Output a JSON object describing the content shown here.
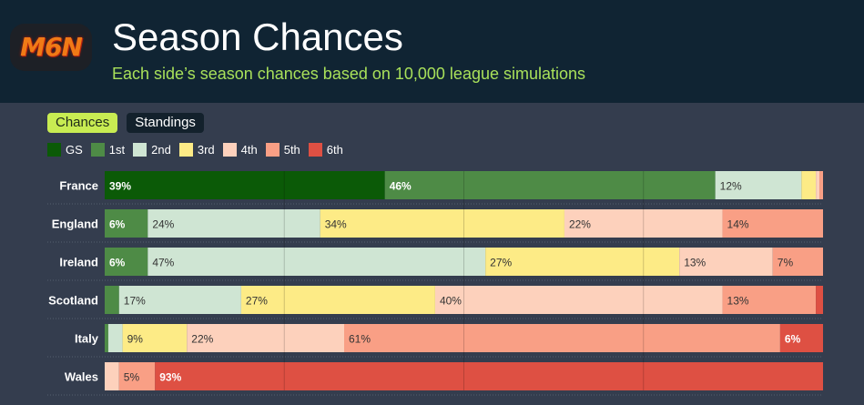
{
  "header": {
    "logo_text": "M6N",
    "title": "Season Chances",
    "subtitle": "Each side’s season chances based on 10,000 league simulations"
  },
  "tabs": [
    {
      "label": "Chances",
      "active": true
    },
    {
      "label": "Standings",
      "active": false
    }
  ],
  "colors": {
    "background": "#343d4e",
    "header_bg": "#102433",
    "accent": "#c8ec52"
  },
  "chart_data": {
    "type": "bar",
    "stacked": true,
    "orientation": "horizontal",
    "title": "Season Chances",
    "subtitle": "Each side’s season chances based on 10,000 league simulations",
    "xlim": [
      0,
      100
    ],
    "categories": [
      "France",
      "England",
      "Ireland",
      "Scotland",
      "Italy",
      "Wales"
    ],
    "series": [
      {
        "name": "GS",
        "color": "#0b5a07",
        "text_color": "#ffffff",
        "values": [
          39,
          0,
          0,
          0,
          0,
          0
        ],
        "labels": [
          "39%",
          "",
          "",
          "",
          "",
          ""
        ]
      },
      {
        "name": "1st",
        "color": "#4e8b46",
        "text_color": "#ffffff",
        "values": [
          46,
          6,
          6,
          2,
          0.5,
          0
        ],
        "labels": [
          "46%",
          "6%",
          "6%",
          "",
          "",
          ""
        ]
      },
      {
        "name": "2nd",
        "color": "#cfe5d3",
        "text_color": "#333333",
        "values": [
          12,
          24,
          47,
          17,
          2,
          0
        ],
        "labels": [
          "12%",
          "24%",
          "47%",
          "17%",
          "",
          ""
        ]
      },
      {
        "name": "3rd",
        "color": "#fdeb86",
        "text_color": "#333333",
        "values": [
          2,
          34,
          27,
          27,
          9,
          0
        ],
        "labels": [
          "",
          "34%",
          "27%",
          "27%",
          "9%",
          ""
        ]
      },
      {
        "name": "4th",
        "color": "#fdd1bc",
        "text_color": "#333333",
        "values": [
          0.5,
          22,
          13,
          40,
          22,
          2
        ],
        "labels": [
          "",
          "22%",
          "13%",
          "40%",
          "22%",
          ""
        ]
      },
      {
        "name": "5th",
        "color": "#f99f85",
        "text_color": "#333333",
        "values": [
          0.5,
          14,
          7,
          13,
          61,
          5
        ],
        "labels": [
          "",
          "14%",
          "7%",
          "13%",
          "61%",
          "5%"
        ]
      },
      {
        "name": "6th",
        "color": "#de5043",
        "text_color": "#ffffff",
        "values": [
          0,
          0,
          0,
          1,
          6,
          93
        ],
        "labels": [
          "",
          "",
          "",
          "",
          "6%",
          "93%"
        ]
      }
    ]
  }
}
